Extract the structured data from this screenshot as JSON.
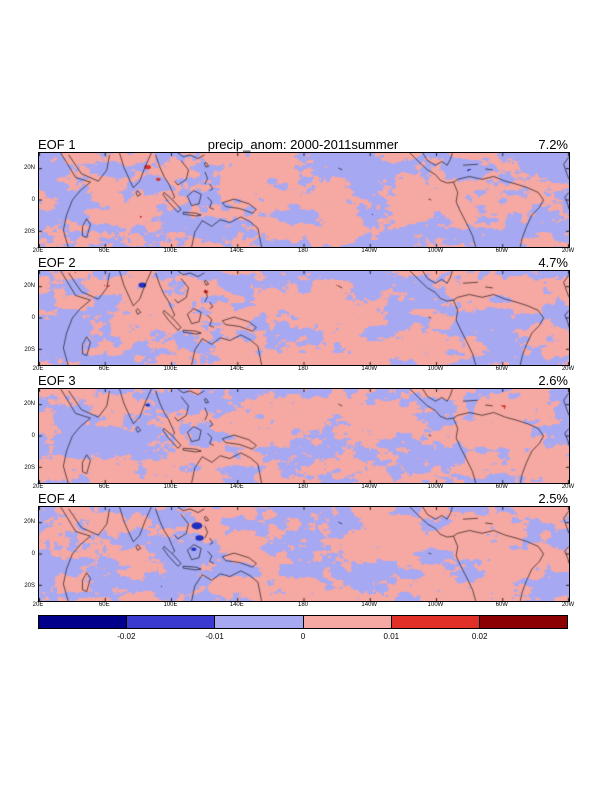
{
  "title": "precip_anom: 2000-2011summer",
  "chart_data": {
    "type": "heatmap",
    "title": "precip_anom: 2000-2011summer",
    "description": "Four EOF spatial patterns of tropical precipitation anomaly (summer 2000-2011)",
    "panels": [
      {
        "label": "EOF 1",
        "variance_pct": "7.2%"
      },
      {
        "label": "EOF 2",
        "variance_pct": "4.7%"
      },
      {
        "label": "EOF 3",
        "variance_pct": "2.6%"
      },
      {
        "label": "EOF 4",
        "variance_pct": "2.5%"
      }
    ],
    "x_tick_labels": [
      "20E",
      "60E",
      "100E",
      "140E",
      "180",
      "140W",
      "100W",
      "60W",
      "20W"
    ],
    "y_tick_labels": [
      "20N",
      "0",
      "20S"
    ],
    "colorbar": {
      "tick_labels": [
        "-0.02",
        "-0.01",
        "0",
        "0.01",
        "0.02"
      ],
      "segment_colors": [
        "#00008b",
        "#3a3ad0",
        "#a6a8f2",
        "#f6a8a2",
        "#e03028",
        "#8b0000"
      ]
    },
    "palette": {
      "positive": "#f6a8a2",
      "negative": "#a6a8f2",
      "strong_positive": "#d83028",
      "strong_negative": "#2030c0"
    }
  }
}
